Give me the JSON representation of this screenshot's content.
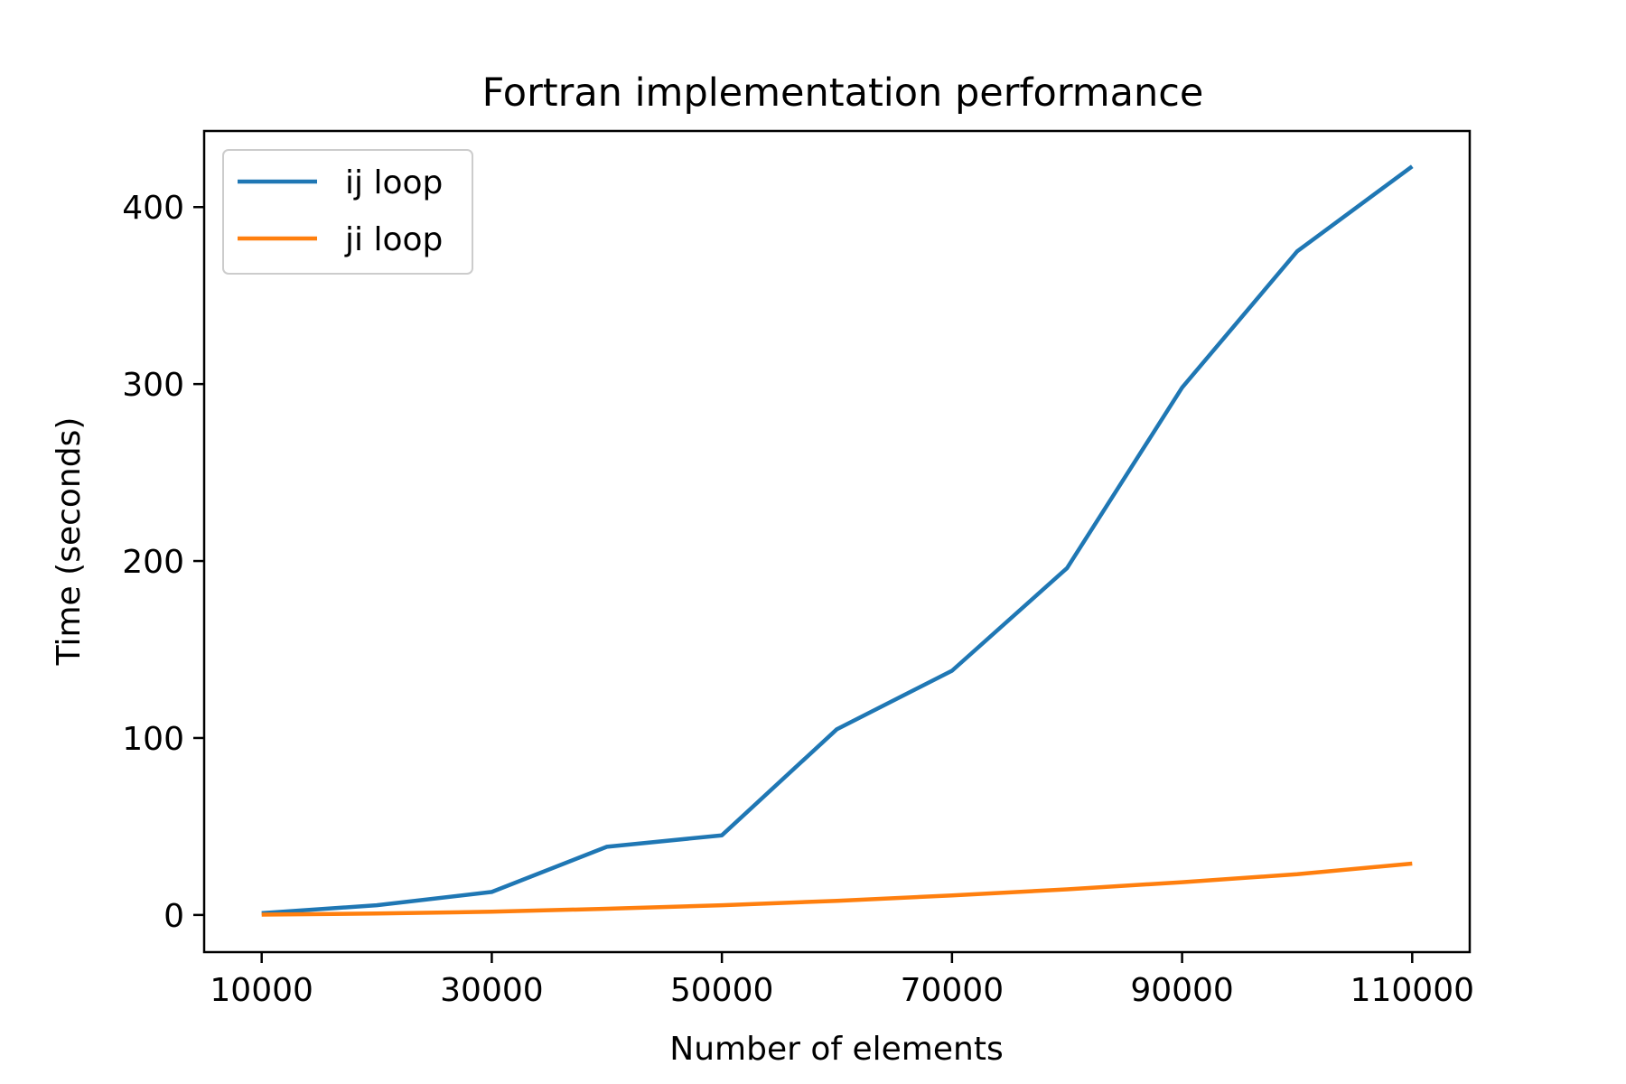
{
  "chart_data": {
    "type": "line",
    "title": "Fortran implementation performance",
    "xlabel": "Number of elements",
    "ylabel": "Time (seconds)",
    "x": [
      10000,
      20000,
      30000,
      40000,
      50000,
      60000,
      70000,
      80000,
      90000,
      100000,
      110000
    ],
    "series": [
      {
        "name": "ij loop",
        "color": "#1f77b4",
        "values": [
          1,
          5.5,
          13,
          38.5,
          45,
          105,
          138,
          196,
          298,
          375,
          423
        ]
      },
      {
        "name": "ji loop",
        "color": "#ff7f0e",
        "values": [
          0.2,
          0.8,
          1.8,
          3.5,
          5.5,
          8,
          11,
          14.5,
          18.5,
          23,
          29
        ]
      }
    ],
    "xticks": [
      "10000",
      "30000",
      "50000",
      "70000",
      "90000",
      "110000"
    ],
    "yticks": [
      "0",
      "100",
      "200",
      "300",
      "400"
    ],
    "xlim": [
      5000,
      115000
    ],
    "ylim": [
      -21,
      443
    ],
    "grid": false,
    "legend_position": "upper left"
  }
}
